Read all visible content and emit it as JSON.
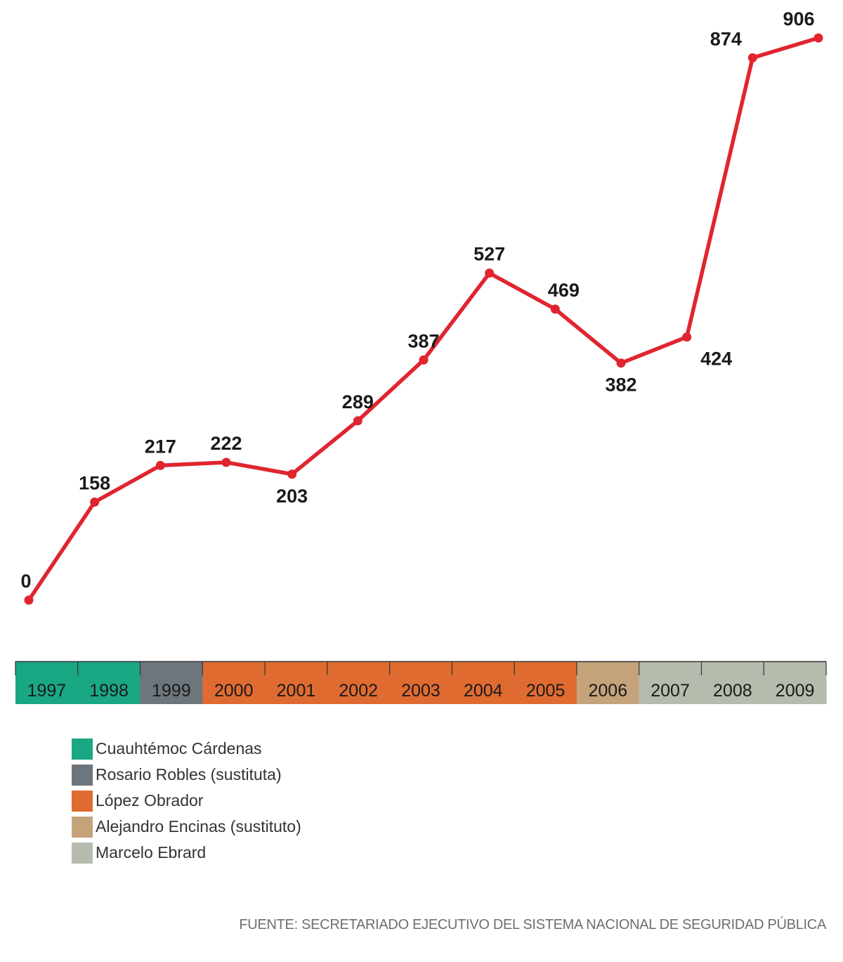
{
  "chart_data": {
    "type": "line",
    "x": [
      "1997",
      "1998",
      "1999",
      "2000",
      "2001",
      "2002",
      "2003",
      "2004",
      "2005",
      "2006",
      "2007",
      "2008",
      "2009"
    ],
    "values": [
      0,
      158,
      217,
      222,
      203,
      289,
      387,
      527,
      469,
      382,
      424,
      874,
      906
    ],
    "label_position": [
      "above",
      "above",
      "above",
      "above",
      "below",
      "above",
      "above",
      "above",
      "above",
      "below",
      "below",
      "above",
      "above"
    ],
    "line_color": "#e0252f",
    "periods": [
      {
        "name": "Cuauhtémoc Cárdenas",
        "color": "#1aa784",
        "years": [
          "1997",
          "1998"
        ]
      },
      {
        "name": "Rosario Robles (sustituta)",
        "color": "#6e767d",
        "years": [
          "1999"
        ]
      },
      {
        "name": "López Obrador",
        "color": "#e06b31",
        "years": [
          "2000",
          "2001",
          "2002",
          "2003",
          "2004",
          "2005"
        ]
      },
      {
        "name": "Alejandro Encinas (sustituto)",
        "color": "#c4a37b",
        "years": [
          "2006"
        ]
      },
      {
        "name": "Marcelo Ebrard",
        "color": "#b5bcae",
        "years": [
          "2007",
          "2008",
          "2009"
        ]
      }
    ]
  },
  "legend": {
    "items": [
      {
        "label": "Cuauhtémoc Cárdenas",
        "color": "#1aa784"
      },
      {
        "label": "Rosario Robles (sustituta)",
        "color": "#6e767d"
      },
      {
        "label": "López Obrador",
        "color": "#e06b31"
      },
      {
        "label": "Alejandro Encinas (sustituto)",
        "color": "#c4a37b"
      },
      {
        "label": "Marcelo Ebrard",
        "color": "#b5bcae"
      }
    ]
  },
  "source": "FUENTE: SECRETARIADO EJECUTIVO DEL SISTEMA NACIONAL DE SEGURIDAD PÚBLICA"
}
